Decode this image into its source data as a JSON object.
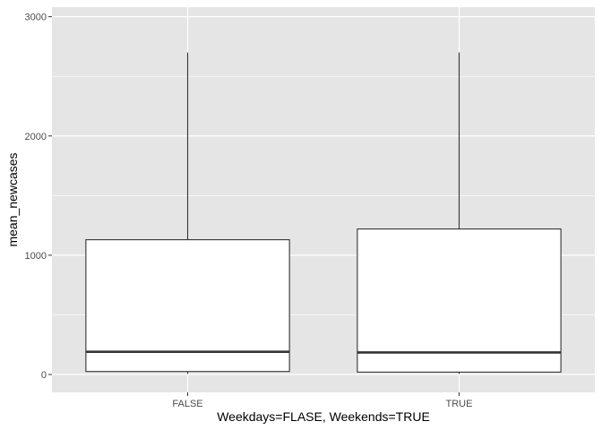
{
  "chart_data": {
    "type": "box",
    "title": "",
    "xlabel": "Weekdays=FLASE, Weekends=TRUE",
    "ylabel": "mean_newcases",
    "ylim": [
      -150,
      3080
    ],
    "y_ticks": [
      0,
      1000,
      2000,
      3000
    ],
    "categories": [
      "FALSE",
      "TRUE"
    ],
    "boxes": [
      {
        "category": "FALSE",
        "min": 5,
        "q1": 25,
        "median": 190,
        "q3": 1130,
        "max": 2700
      },
      {
        "category": "TRUE",
        "min": 5,
        "q1": 20,
        "median": 185,
        "q3": 1220,
        "max": 2700
      }
    ],
    "grid": true,
    "colors": {
      "panel": "#e5e5e5",
      "grid": "#ffffff",
      "box_fill": "#ffffff",
      "box_stroke": "#333333"
    }
  }
}
